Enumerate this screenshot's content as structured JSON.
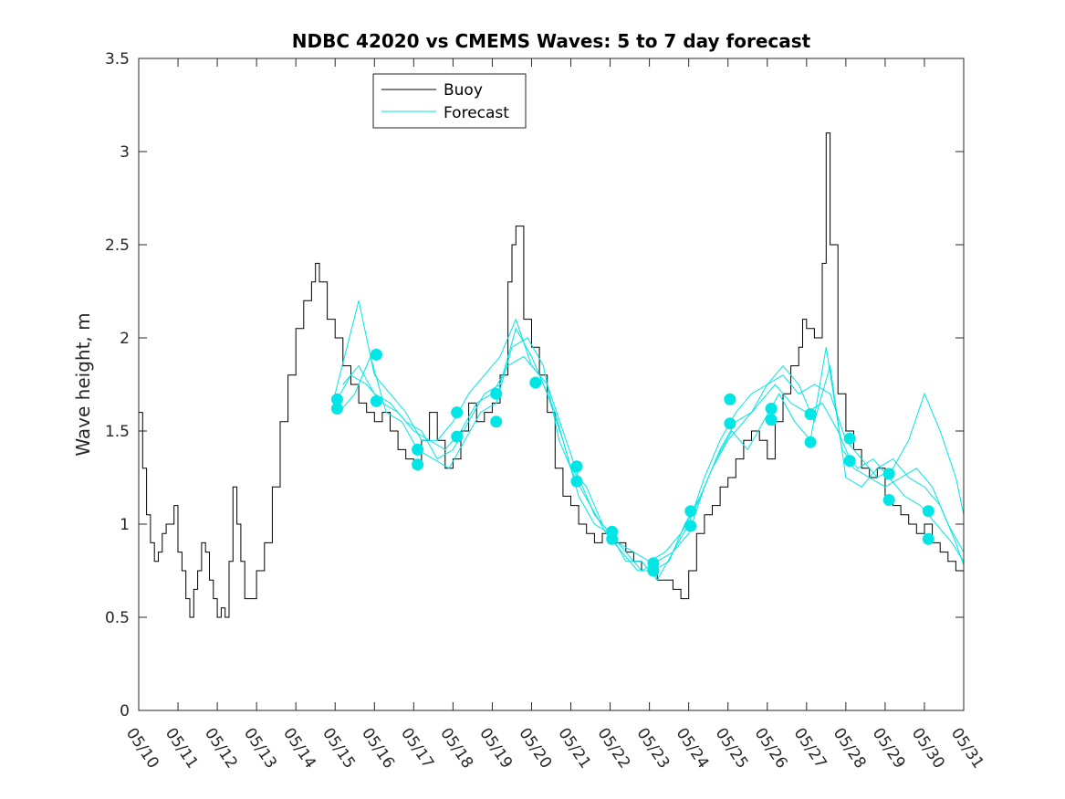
{
  "chart_data": {
    "type": "line",
    "title": "NDBC 42020 vs CMEMS Waves: 5 to 7 day forecast",
    "xlabel": "",
    "ylabel": "Wave height, m",
    "xlim": [
      0,
      21
    ],
    "ylim": [
      0,
      3.5
    ],
    "x_ticks": [
      0,
      1,
      2,
      3,
      4,
      5,
      6,
      7,
      8,
      9,
      10,
      11,
      12,
      13,
      14,
      15,
      16,
      17,
      18,
      19,
      20,
      21
    ],
    "x_tick_labels": [
      "05/10",
      "05/11",
      "05/12",
      "05/13",
      "05/14",
      "05/15",
      "05/16",
      "05/17",
      "05/18",
      "05/19",
      "05/20",
      "05/21",
      "05/22",
      "05/23",
      "05/24",
      "05/25",
      "05/26",
      "05/27",
      "05/28",
      "05/29",
      "05/30",
      "05/31"
    ],
    "y_ticks": [
      0,
      0.5,
      1,
      1.5,
      2,
      2.5,
      3,
      3.5
    ],
    "y_tick_labels": [
      "0",
      "0.5",
      "1",
      "1.5",
      "2",
      "2.5",
      "3",
      "3.5"
    ],
    "grid": false,
    "legend_position": "top-center",
    "colors": {
      "buoy": "#000000",
      "forecast": "#00e5e5",
      "axes": "#262626"
    },
    "series": [
      {
        "name": "Buoy",
        "style": "line",
        "x": [
          0.0,
          0.1,
          0.2,
          0.3,
          0.4,
          0.5,
          0.6,
          0.7,
          0.8,
          0.9,
          1.0,
          1.1,
          1.2,
          1.3,
          1.4,
          1.5,
          1.6,
          1.7,
          1.8,
          1.9,
          2.0,
          2.1,
          2.2,
          2.3,
          2.4,
          2.5,
          2.6,
          2.7,
          2.8,
          2.9,
          3.0,
          3.2,
          3.4,
          3.6,
          3.8,
          4.0,
          4.2,
          4.4,
          4.5,
          4.6,
          4.8,
          5.0,
          5.2,
          5.4,
          5.6,
          5.8,
          6.0,
          6.2,
          6.4,
          6.6,
          6.8,
          7.0,
          7.2,
          7.4,
          7.6,
          7.8,
          8.0,
          8.2,
          8.4,
          8.6,
          8.8,
          9.0,
          9.2,
          9.4,
          9.5,
          9.6,
          9.8,
          10.0,
          10.2,
          10.4,
          10.6,
          10.8,
          11.0,
          11.2,
          11.4,
          11.6,
          11.8,
          12.0,
          12.2,
          12.4,
          12.6,
          12.8,
          13.0,
          13.2,
          13.4,
          13.6,
          13.8,
          14.0,
          14.2,
          14.4,
          14.6,
          14.8,
          15.0,
          15.2,
          15.4,
          15.6,
          15.8,
          16.0,
          16.2,
          16.4,
          16.6,
          16.8,
          16.9,
          17.0,
          17.2,
          17.4,
          17.5,
          17.6,
          17.8,
          18.0,
          18.2,
          18.4,
          18.6,
          18.8,
          19.0,
          19.2,
          19.4,
          19.6,
          19.8,
          20.0,
          20.2,
          20.4,
          20.6,
          20.8,
          21.0
        ],
        "values": [
          1.6,
          1.3,
          1.05,
          0.9,
          0.8,
          0.85,
          0.95,
          1.0,
          1.0,
          1.1,
          0.85,
          0.75,
          0.6,
          0.5,
          0.65,
          0.75,
          0.9,
          0.85,
          0.7,
          0.6,
          0.5,
          0.55,
          0.5,
          0.8,
          1.2,
          1.0,
          0.8,
          0.6,
          0.6,
          0.6,
          0.75,
          0.9,
          1.2,
          1.55,
          1.8,
          2.05,
          2.2,
          2.3,
          2.4,
          2.3,
          2.1,
          2.0,
          1.85,
          1.75,
          1.65,
          1.6,
          1.55,
          1.6,
          1.5,
          1.4,
          1.35,
          1.3,
          1.45,
          1.6,
          1.45,
          1.3,
          1.35,
          1.5,
          1.65,
          1.55,
          1.6,
          1.65,
          1.8,
          2.3,
          2.5,
          2.6,
          2.1,
          1.95,
          1.8,
          1.6,
          1.3,
          1.15,
          1.1,
          1.0,
          0.95,
          0.9,
          0.95,
          0.9,
          0.9,
          0.85,
          0.8,
          0.75,
          0.75,
          0.7,
          0.7,
          0.65,
          0.6,
          0.75,
          0.95,
          1.05,
          1.1,
          1.2,
          1.25,
          1.35,
          1.45,
          1.5,
          1.45,
          1.35,
          1.55,
          1.7,
          1.85,
          1.95,
          2.1,
          2.05,
          2.0,
          2.4,
          3.1,
          2.5,
          1.7,
          1.5,
          1.4,
          1.3,
          1.25,
          1.3,
          1.15,
          1.1,
          1.05,
          1.0,
          0.95,
          1.0,
          0.9,
          0.85,
          0.8,
          0.75,
          0.85
        ]
      },
      {
        "name": "Forecast",
        "style": "line",
        "x": [
          5.0,
          5.3,
          5.6,
          6.0,
          6.4,
          6.8,
          7.2,
          7.6,
          8.0,
          8.4,
          8.8,
          9.2,
          9.6,
          10.0,
          10.4,
          10.8,
          11.2,
          11.6,
          12.0,
          12.4,
          12.8,
          13.2,
          13.6,
          14.0,
          14.4,
          14.8,
          15.2,
          15.6,
          16.0,
          16.4,
          16.8,
          17.2,
          17.6,
          18.0,
          18.4,
          18.8,
          19.2,
          19.6,
          20.0,
          20.4,
          20.8,
          21.0
        ],
        "values": [
          1.7,
          1.95,
          2.2,
          1.8,
          1.7,
          1.6,
          1.45,
          1.45,
          1.55,
          1.7,
          1.8,
          1.9,
          2.1,
          1.85,
          1.75,
          1.5,
          1.25,
          1.05,
          0.95,
          0.85,
          0.75,
          0.8,
          0.85,
          1.0,
          1.25,
          1.45,
          1.6,
          1.7,
          1.75,
          1.8,
          1.7,
          1.75,
          1.7,
          1.45,
          1.35,
          1.25,
          1.3,
          1.45,
          1.7,
          1.5,
          1.25,
          1.05
        ]
      },
      {
        "name": "",
        "style": "line",
        "x": [
          5.0,
          5.4,
          5.8,
          6.2,
          6.6,
          7.0,
          7.4,
          7.8,
          8.2,
          8.6,
          9.0,
          9.4,
          9.8,
          10.2,
          10.6,
          11.0,
          11.4,
          11.8,
          12.2,
          12.6,
          13.0,
          13.4,
          13.8,
          14.2,
          14.6,
          15.0,
          15.4,
          15.8,
          16.2,
          16.6,
          17.0,
          17.4,
          17.8,
          18.2,
          18.6,
          19.0,
          19.4,
          19.8,
          20.2,
          20.6,
          21.0
        ],
        "values": [
          1.65,
          1.8,
          1.75,
          1.65,
          1.6,
          1.5,
          1.45,
          1.4,
          1.5,
          1.65,
          1.7,
          1.85,
          1.9,
          1.8,
          1.6,
          1.3,
          1.2,
          1.0,
          0.9,
          0.85,
          0.8,
          0.85,
          0.95,
          1.1,
          1.3,
          1.45,
          1.55,
          1.65,
          1.75,
          1.65,
          1.6,
          1.65,
          1.5,
          1.3,
          1.25,
          1.2,
          1.25,
          1.3,
          1.2,
          1.0,
          0.85
        ]
      },
      {
        "name": "",
        "style": "line",
        "x": [
          5.1,
          5.5,
          5.9,
          6.3,
          6.7,
          7.1,
          7.5,
          7.9,
          8.3,
          8.7,
          9.1,
          9.5,
          9.9,
          10.3,
          10.7,
          11.1,
          11.5,
          11.9,
          12.3,
          12.7,
          13.1,
          13.5,
          13.9,
          14.3,
          14.7,
          15.1,
          15.5,
          15.9,
          16.3,
          16.7,
          17.1,
          17.5,
          17.9,
          18.3,
          18.7,
          19.1,
          19.5,
          19.9,
          20.3,
          20.7,
          21.0
        ],
        "values": [
          1.6,
          1.7,
          1.9,
          1.6,
          1.55,
          1.4,
          1.35,
          1.3,
          1.45,
          1.6,
          1.65,
          1.95,
          2.0,
          1.85,
          1.45,
          1.25,
          1.1,
          0.95,
          0.85,
          0.75,
          0.75,
          0.8,
          1.0,
          1.15,
          1.35,
          1.5,
          1.4,
          1.55,
          1.7,
          1.55,
          1.45,
          1.95,
          1.4,
          1.3,
          1.35,
          1.25,
          1.15,
          1.1,
          1.0,
          0.9,
          0.8
        ]
      },
      {
        "name": "",
        "style": "line",
        "x": [
          5.2,
          5.6,
          6.0,
          6.4,
          6.8,
          7.2,
          7.6,
          8.0,
          8.4,
          8.8,
          9.2,
          9.6,
          10.0,
          10.4,
          10.8,
          11.2,
          11.6,
          12.0,
          12.4,
          12.8,
          13.2,
          13.6,
          14.0,
          14.4,
          14.8,
          15.2,
          15.6,
          16.0,
          16.4,
          16.8,
          17.2,
          17.6,
          18.0,
          18.4,
          18.8,
          19.2,
          19.6,
          20.0,
          20.4,
          20.8,
          21.0
        ],
        "values": [
          1.75,
          1.85,
          1.7,
          1.65,
          1.55,
          1.5,
          1.35,
          1.4,
          1.55,
          1.7,
          1.75,
          2.05,
          1.9,
          1.7,
          1.45,
          1.15,
          1.0,
          0.95,
          0.8,
          0.8,
          0.7,
          0.85,
          0.95,
          1.2,
          1.4,
          1.55,
          1.6,
          1.75,
          1.85,
          1.75,
          1.55,
          1.85,
          1.25,
          1.2,
          1.3,
          1.35,
          1.25,
          1.2,
          1.1,
          0.9,
          0.78
        ]
      },
      {
        "name": "",
        "style": "markers",
        "x": [
          5.05,
          5.05,
          6.05,
          6.05,
          7.1,
          7.1,
          8.1,
          8.1,
          9.1,
          9.1,
          10.1,
          11.15,
          11.15,
          12.05,
          12.05,
          13.1,
          13.1,
          14.05,
          14.05,
          15.05,
          15.05,
          16.1,
          16.1,
          17.1,
          17.1,
          18.1,
          18.1,
          19.1,
          19.1,
          20.1,
          20.1
        ],
        "values": [
          1.67,
          1.62,
          1.91,
          1.66,
          1.4,
          1.32,
          1.6,
          1.47,
          1.7,
          1.55,
          1.76,
          1.31,
          1.23,
          0.96,
          0.92,
          0.79,
          0.75,
          1.07,
          0.99,
          1.67,
          1.54,
          1.62,
          1.56,
          1.59,
          1.44,
          1.46,
          1.34,
          1.27,
          1.13,
          1.07,
          0.92
        ]
      }
    ]
  }
}
